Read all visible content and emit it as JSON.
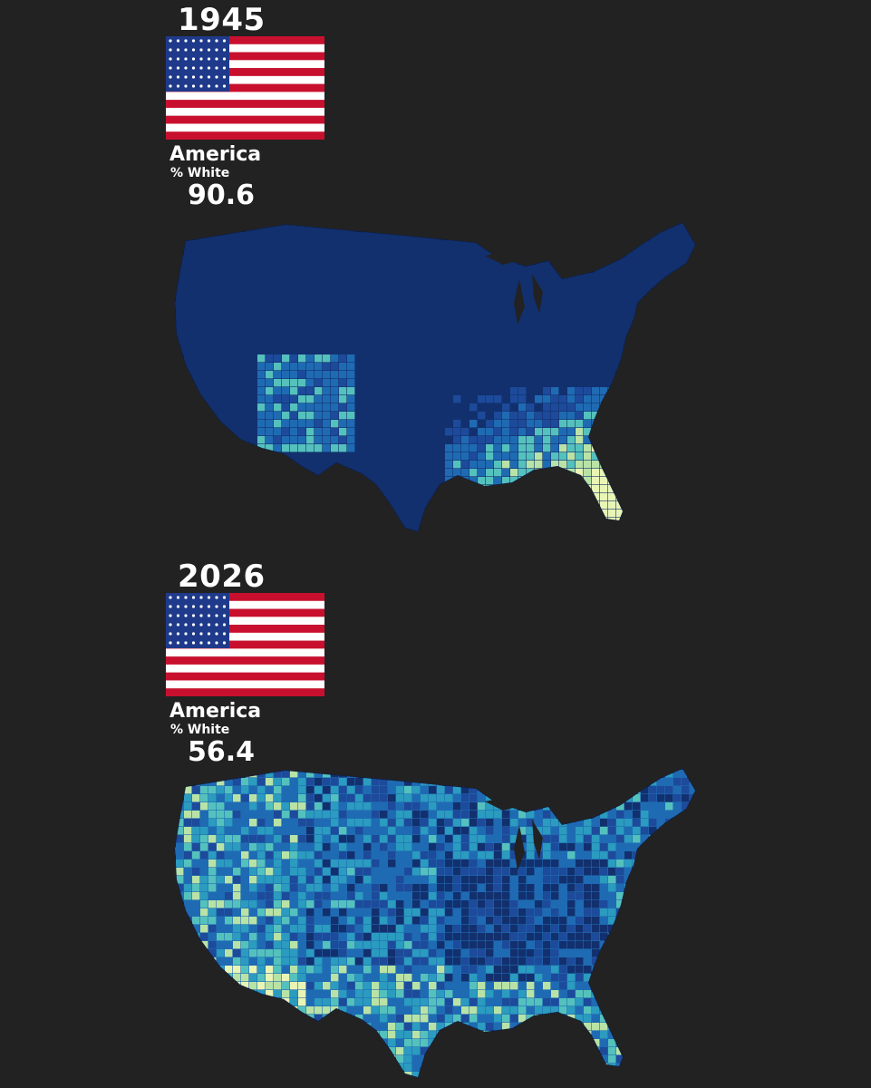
{
  "panels": [
    {
      "year": "1945",
      "country": "America",
      "metric": "% White",
      "value": "90.6",
      "map_palette": [
        "#12306e",
        "#1d4a9a",
        "#1f6bb3",
        "#2b9bbf",
        "#55c1bd",
        "#b9e3a6",
        "#e9f5b5"
      ]
    },
    {
      "year": "2026",
      "country": "America",
      "metric": "% White",
      "value": "56.4",
      "map_palette": [
        "#12306e",
        "#1d4a9a",
        "#1f6bb3",
        "#2b9bbf",
        "#55c1bd",
        "#b9e3a6",
        "#e9f5b5"
      ]
    }
  ],
  "flag": {
    "icon": "us-flag-icon",
    "colors": {
      "red": "#c8102e",
      "white": "#ffffff",
      "blue": "#1f3a8a"
    }
  },
  "background": "#222223"
}
